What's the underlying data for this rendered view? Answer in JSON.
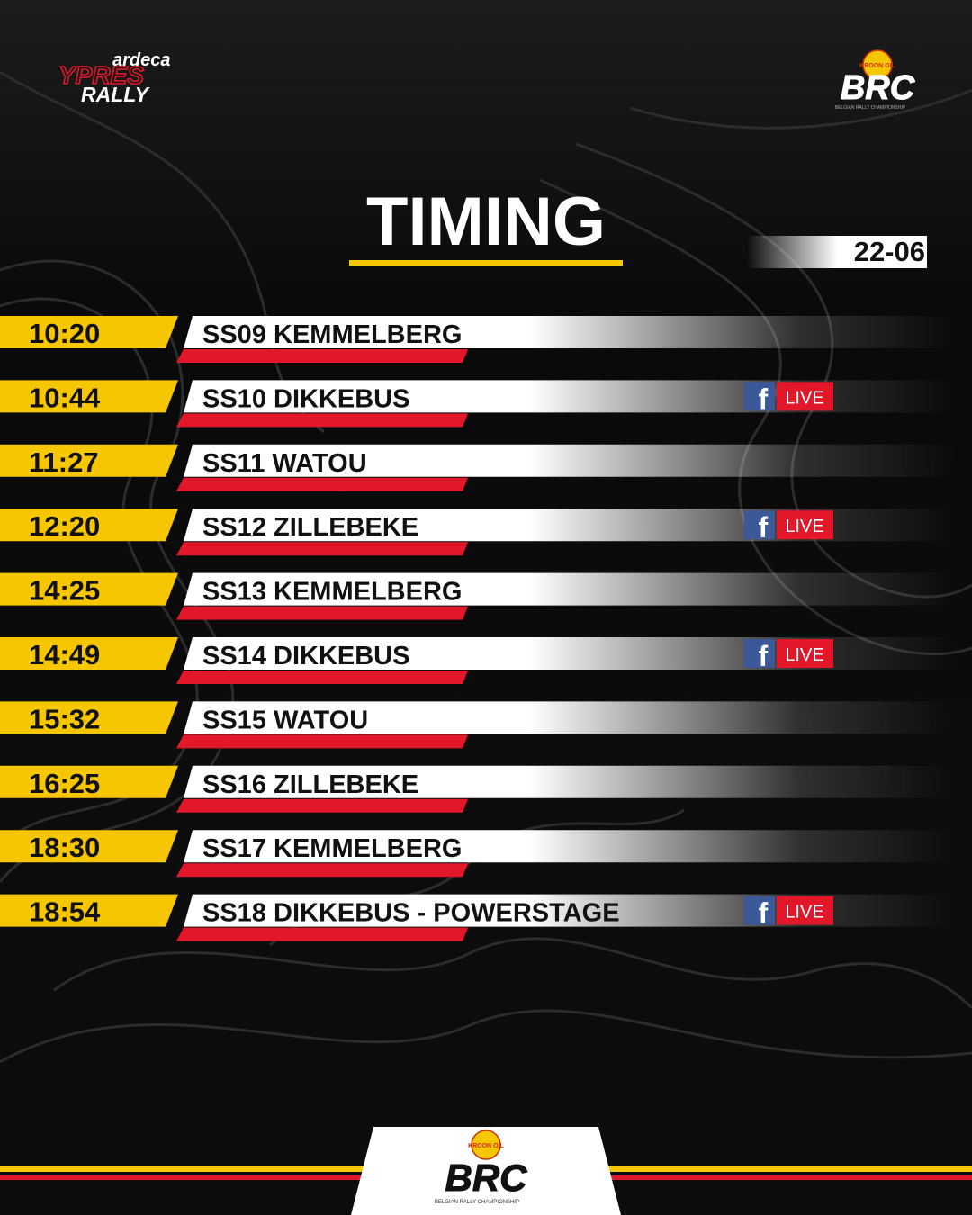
{
  "header": {
    "event_logo": {
      "sponsor": "ardeca",
      "name": "YPRES",
      "suffix": "RALLY"
    },
    "series_logo": {
      "sponsor": "KROON OIL",
      "name": "BRC",
      "tagline": "BELGIAN RALLY CHAMPIONSHIP"
    }
  },
  "title": "TIMING",
  "date": "22-06",
  "schedule": [
    {
      "time": "10:20",
      "stage": "SS09 KEMMELBERG",
      "live": null
    },
    {
      "time": "10:44",
      "stage": "SS10 DIKKEBUS",
      "live": {
        "icon": "f",
        "label": "LIVE"
      }
    },
    {
      "time": "11:27",
      "stage": "SS11 WATOU",
      "live": null
    },
    {
      "time": "12:20",
      "stage": "SS12 ZILLEBEKE",
      "live": {
        "icon": "f",
        "label": "LIVE"
      }
    },
    {
      "time": "14:25",
      "stage": "SS13 KEMMELBERG",
      "live": null
    },
    {
      "time": "14:49",
      "stage": "SS14 DIKKEBUS",
      "live": {
        "icon": "f",
        "label": "LIVE"
      }
    },
    {
      "time": "15:32",
      "stage": "SS15 WATOU",
      "live": null
    },
    {
      "time": "16:25",
      "stage": "SS16 ZILLEBEKE",
      "live": null
    },
    {
      "time": "18:30",
      "stage": "SS17 KEMMELBERG",
      "live": null
    },
    {
      "time": "18:54",
      "stage": "SS18 DIKKEBUS - POWERSTAGE",
      "live": {
        "icon": "f",
        "label": "LIVE"
      }
    }
  ],
  "footer": {
    "sponsor": "KROON OIL",
    "name": "BRC",
    "tagline": "BELGIAN RALLY CHAMPIONSHIP"
  }
}
